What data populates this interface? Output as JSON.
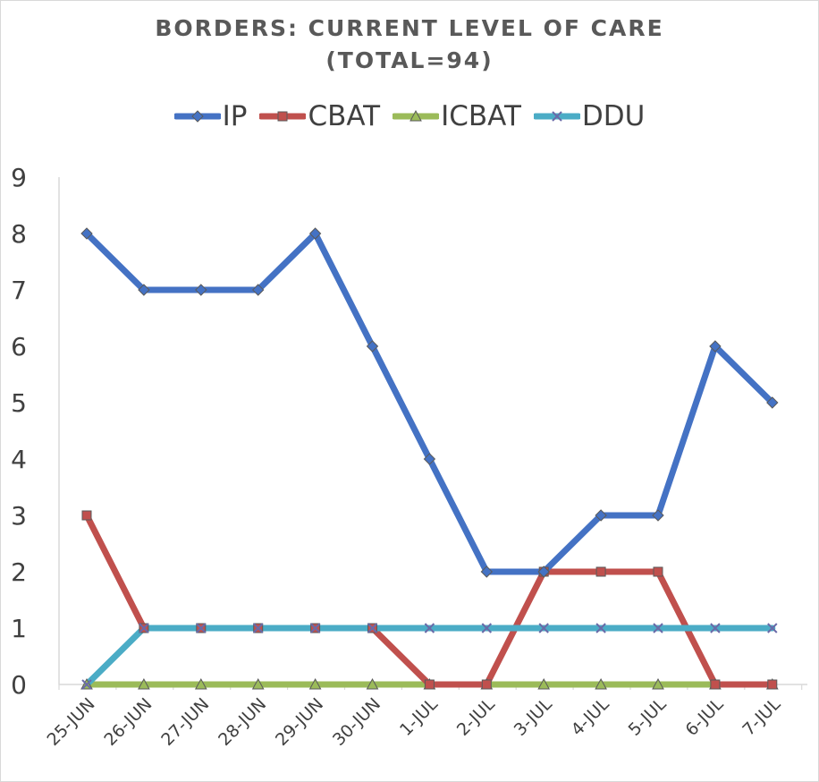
{
  "chart_data": {
    "type": "line",
    "title": "BORDERS: CURRENT LEVEL OF CARE",
    "subtitle": "(TOTAL=94)",
    "categories": [
      "25-JUN",
      "26-JUN",
      "27-JUN",
      "28-JUN",
      "29-JUN",
      "30-JUN",
      "1-JUL",
      "2-JUL",
      "3-JUL",
      "4-JUL",
      "5-JUL",
      "6-JUL",
      "7-JUL"
    ],
    "ylim": [
      0,
      9
    ],
    "yticks": [
      "0",
      "1",
      "2",
      "3",
      "4",
      "5",
      "6",
      "7",
      "8",
      "9"
    ],
    "legend_position": "top",
    "grid": false,
    "series": [
      {
        "name": "IP",
        "color": "#4472c4",
        "marker": "diamond",
        "values": [
          8,
          7,
          7,
          7,
          8,
          6,
          4,
          2,
          2,
          3,
          3,
          6,
          5
        ]
      },
      {
        "name": "CBAT",
        "color": "#c0504d",
        "marker": "square",
        "values": [
          3,
          1,
          1,
          1,
          1,
          1,
          0,
          0,
          2,
          2,
          2,
          0,
          0
        ]
      },
      {
        "name": "ICBAT",
        "color": "#9bbb59",
        "marker": "triangle",
        "values": [
          0,
          0,
          0,
          0,
          0,
          0,
          0,
          0,
          0,
          0,
          0,
          0,
          0
        ]
      },
      {
        "name": "DDU",
        "color": "#4bacc6",
        "marker": "x",
        "values": [
          0,
          1,
          1,
          1,
          1,
          1,
          1,
          1,
          1,
          1,
          1,
          1,
          1
        ]
      }
    ]
  }
}
